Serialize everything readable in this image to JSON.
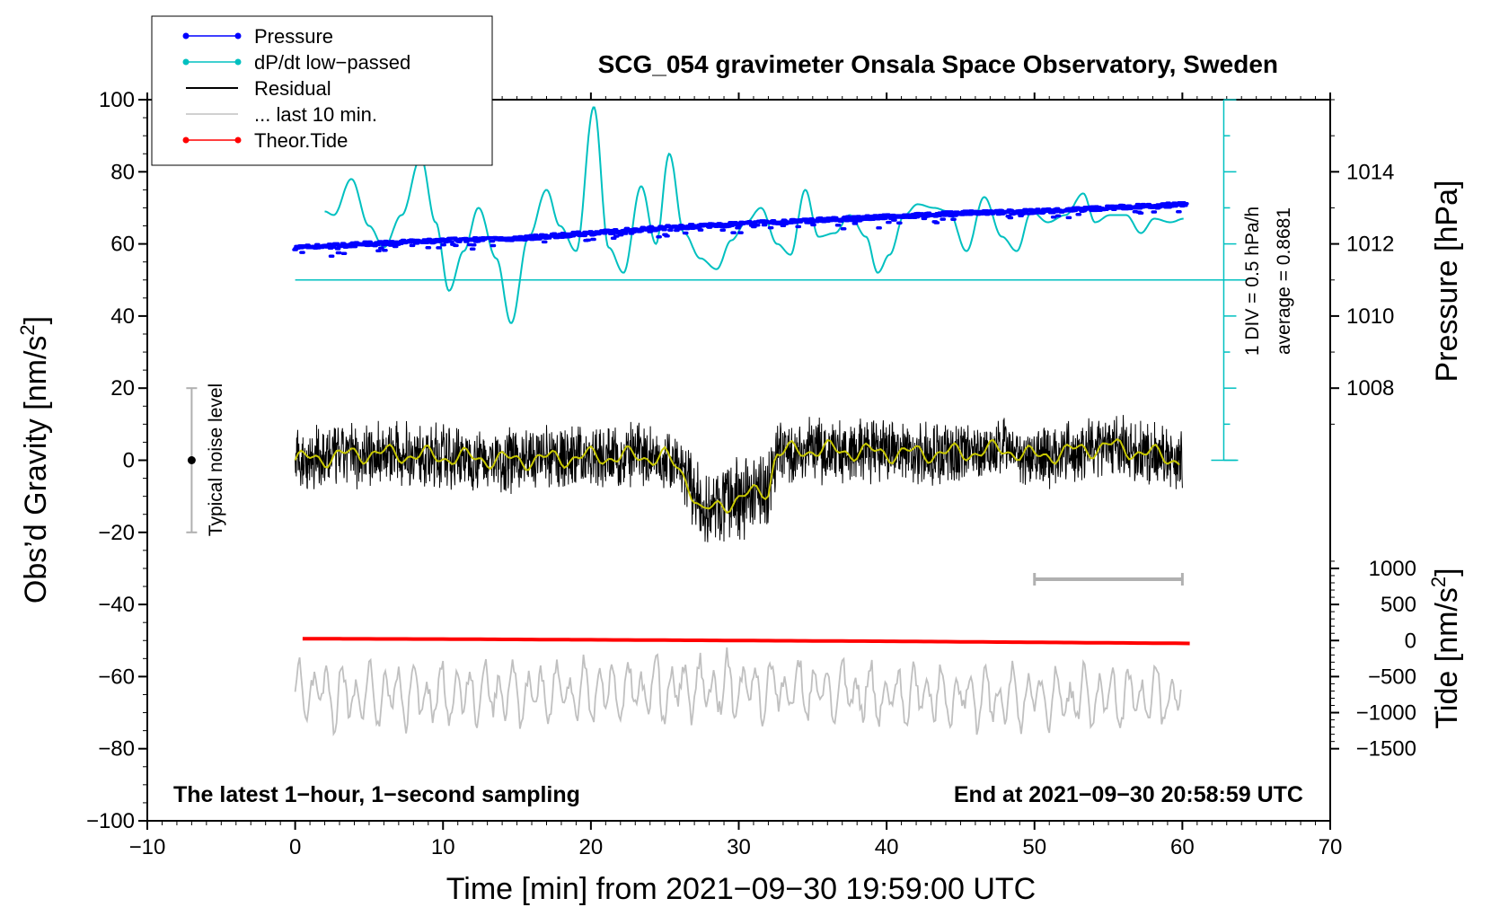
{
  "chart_data": {
    "type": "line",
    "title": "SCG_054 gravimeter Onsala Space Observatory, Sweden",
    "xlabel": "Time [min] from 2021−09−30 19:59:00 UTC",
    "xlim": [
      -10,
      70
    ],
    "x_ticks": [
      {
        "value": -10,
        "label": "−10"
      },
      {
        "value": 0,
        "label": "0"
      },
      {
        "value": 10,
        "label": "10"
      },
      {
        "value": 20,
        "label": "20"
      },
      {
        "value": 30,
        "label": "30"
      },
      {
        "value": 40,
        "label": "40"
      },
      {
        "value": 50,
        "label": "50"
      },
      {
        "value": 60,
        "label": "60"
      },
      {
        "value": 70,
        "label": "70"
      }
    ],
    "y_left": {
      "label_prefix": "Obs’d Gravity [nm/s",
      "label_sup": "2",
      "label_suffix": "]",
      "ylim": [
        -100,
        100
      ],
      "ticks": [
        {
          "value": 100,
          "label": "100"
        },
        {
          "value": 80,
          "label": "80"
        },
        {
          "value": 60,
          "label": "60"
        },
        {
          "value": 40,
          "label": "40"
        },
        {
          "value": 20,
          "label": "20"
        },
        {
          "value": 0,
          "label": "0"
        },
        {
          "value": -20,
          "label": "−20"
        },
        {
          "value": -40,
          "label": "−40"
        },
        {
          "value": -60,
          "label": "−60"
        },
        {
          "value": -80,
          "label": "−80"
        },
        {
          "value": -100,
          "label": "−100"
        }
      ]
    },
    "y_right_pressure": {
      "label": "Pressure [hPa]",
      "gravity_equivalent": {
        "hpa_1012": 60,
        "nm_per_hpa": 10
      },
      "ticks": [
        {
          "value": 1014,
          "label": "1014"
        },
        {
          "value": 1012,
          "label": "1012"
        },
        {
          "value": 1010,
          "label": "1010"
        },
        {
          "value": 1008,
          "label": "1008"
        }
      ]
    },
    "y_right_tide": {
      "label_prefix": "Tide [nm/s",
      "label_sup": "2",
      "label_suffix": "]",
      "gravity_equivalent": {
        "zero_at": -50,
        "units_per_nm": 50
      },
      "ticks": [
        {
          "value": 1000,
          "label": "1000"
        },
        {
          "value": 500,
          "label": "500"
        },
        {
          "value": 0,
          "label": "0"
        },
        {
          "value": -500,
          "label": "−500"
        },
        {
          "value": -1000,
          "label": "−1000"
        },
        {
          "value": -1500,
          "label": "−1500"
        }
      ]
    },
    "dpdt_scale": {
      "label": "1 DIV = 0.5 hPa/h",
      "average_label": "average = 0.8681",
      "baseline_gravity": 50,
      "x_position_min": 62.8,
      "range_gravity": [
        0,
        100
      ]
    },
    "noise_indicator": {
      "label": "Typical noise level",
      "x": -7,
      "center": 0,
      "low": -20,
      "high": 20
    },
    "window_bar": {
      "x_start": 50,
      "x_end": 60,
      "gravity": -33
    },
    "bottom_left_text": "The latest 1−hour, 1−second sampling",
    "bottom_right_text": "End at 2021−09−30 20:58:59 UTC",
    "legend": [
      {
        "label": "Pressure",
        "color": "#0000ff",
        "marker": true
      },
      {
        "label": "dP/dt low−passed",
        "color": "#00c0c0",
        "marker": true
      },
      {
        "label": "Residual",
        "color": "#000000",
        "marker": false
      },
      {
        "label": "... last 10 min.",
        "color": "#c0c0c0",
        "marker": false
      },
      {
        "label": "Theor.Tide",
        "color": "#ff0000",
        "marker": true
      }
    ],
    "series": [
      {
        "name": "Pressure",
        "axis": "pressure_hPa",
        "color": "#0000ff",
        "x": [
          0,
          5,
          10,
          15,
          20,
          25,
          30,
          35,
          40,
          45,
          50,
          55,
          60.3
        ],
        "values": [
          1011.9,
          1012.0,
          1012.1,
          1012.15,
          1012.3,
          1012.45,
          1012.55,
          1012.65,
          1012.75,
          1012.85,
          1012.9,
          1013.0,
          1013.1
        ]
      },
      {
        "name": "dP/dt low−passed",
        "axis": "gravity_equivalent",
        "color": "#00c0c0",
        "x": [
          2,
          2.6,
          3.8,
          5.0,
          6.0,
          7.2,
          8.5,
          9.5,
          10.4,
          11.4,
          12.4,
          13.6,
          14.6,
          15.8,
          17.0,
          17.9,
          19.0,
          20.2,
          21.2,
          22.2,
          23.4,
          24.4,
          25.3,
          26.3,
          27.4,
          28.5,
          29.5,
          30.5,
          31.5,
          32.6,
          33.5,
          34.5,
          35.4,
          36.5,
          37.5,
          38.6,
          39.4,
          40.2,
          41.2,
          42.1,
          43.2,
          44.2,
          45.4,
          46.6,
          47.8,
          48.8,
          49.8,
          50.9,
          52.1,
          53.3,
          54.1,
          55.1,
          56.2,
          57.2,
          58.1,
          59.2,
          60.1
        ],
        "values": [
          69,
          68,
          78,
          65,
          59,
          68,
          84,
          66,
          47,
          58,
          70,
          56,
          38,
          62,
          75,
          65,
          58,
          98,
          59,
          52,
          76,
          60,
          85,
          63,
          56,
          53,
          61,
          66,
          70,
          60,
          57,
          75,
          62,
          63,
          68,
          62,
          52,
          57,
          68,
          71,
          70,
          69,
          58,
          73,
          62,
          58,
          69,
          66,
          68,
          74,
          66,
          68,
          68,
          63,
          67,
          66,
          67
        ]
      },
      {
        "name": "Residual",
        "axis": "gravity",
        "color": "#000000",
        "x": [
          0,
          5,
          10,
          15,
          20,
          25,
          26.5,
          27.5,
          29,
          30.5,
          32,
          32.5,
          35,
          40,
          45,
          48,
          50,
          55,
          60
        ],
        "values": [
          0,
          2,
          1,
          0,
          1,
          1,
          -5,
          -15,
          -12,
          -10,
          -8,
          2,
          3,
          2,
          2,
          3,
          1,
          4,
          0
        ]
      },
      {
        "name": "... last 10 min.",
        "axis": "gravity",
        "color": "#c0c0c0",
        "x": [
          0,
          10,
          20,
          30,
          40,
          50,
          60
        ],
        "values": [
          -65,
          -65,
          -64,
          -63,
          -65,
          -66,
          -66
        ]
      },
      {
        "name": "Theor.Tide",
        "axis": "tide_nm_s2",
        "color": "#ff0000",
        "x": [
          0.5,
          10,
          20,
          30,
          40,
          50,
          60.5
        ],
        "values": [
          25,
          20,
          10,
          0,
          -10,
          -25,
          -40
        ]
      }
    ]
  }
}
